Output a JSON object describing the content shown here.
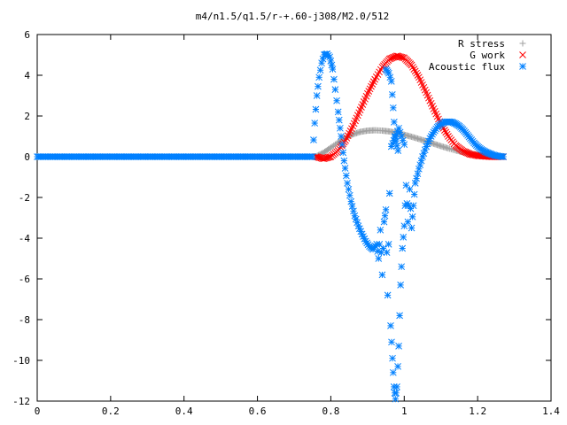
{
  "chart_data": {
    "type": "scatter",
    "title": "m4/n1.5/q1.5/r-+.60-j308/M2.0/512",
    "xlabel": "",
    "ylabel": "",
    "xlim": [
      0,
      1.4
    ],
    "ylim": [
      -12,
      6
    ],
    "xticks": [
      "0",
      "0.2",
      "0.4",
      "0.6",
      "0.8",
      "1",
      "1.2",
      "1.4"
    ],
    "yticks": [
      "6",
      "4",
      "2",
      "0",
      "-2",
      "-4",
      "-6",
      "-8",
      "-10",
      "-12"
    ],
    "grid": false,
    "legend_position": "top-right",
    "series": [
      {
        "name": "R stress",
        "marker": "+",
        "color": "#a0a0a0",
        "points": [
          [
            0.0,
            0.0
          ],
          [
            0.05,
            0.0
          ],
          [
            0.1,
            0.0
          ],
          [
            0.15,
            0.0
          ],
          [
            0.2,
            0.0
          ],
          [
            0.25,
            0.0
          ],
          [
            0.3,
            0.0
          ],
          [
            0.35,
            0.0
          ],
          [
            0.4,
            0.0
          ],
          [
            0.45,
            0.0
          ],
          [
            0.5,
            0.0
          ],
          [
            0.55,
            0.0
          ],
          [
            0.6,
            0.0
          ],
          [
            0.65,
            0.0
          ],
          [
            0.7,
            0.0
          ],
          [
            0.75,
            0.0
          ],
          [
            0.76,
            0.02
          ],
          [
            0.78,
            0.2
          ],
          [
            0.8,
            0.45
          ],
          [
            0.82,
            0.7
          ],
          [
            0.84,
            0.92
          ],
          [
            0.86,
            1.1
          ],
          [
            0.88,
            1.22
          ],
          [
            0.9,
            1.28
          ],
          [
            0.92,
            1.3
          ],
          [
            0.94,
            1.28
          ],
          [
            0.96,
            1.24
          ],
          [
            0.98,
            1.17
          ],
          [
            1.0,
            1.08
          ],
          [
            1.02,
            0.98
          ],
          [
            1.04,
            0.87
          ],
          [
            1.06,
            0.76
          ],
          [
            1.08,
            0.64
          ],
          [
            1.1,
            0.52
          ],
          [
            1.12,
            0.41
          ],
          [
            1.14,
            0.31
          ],
          [
            1.16,
            0.22
          ],
          [
            1.18,
            0.15
          ],
          [
            1.2,
            0.09
          ],
          [
            1.22,
            0.05
          ],
          [
            1.24,
            0.02
          ],
          [
            1.26,
            0.0
          ],
          [
            1.27,
            0.0
          ]
        ]
      },
      {
        "name": "G work",
        "marker": "x",
        "color": "#ff0000",
        "points": [
          [
            0.76,
            0.0
          ],
          [
            0.78,
            -0.1
          ],
          [
            0.8,
            0.0
          ],
          [
            0.82,
            0.3
          ],
          [
            0.84,
            0.8
          ],
          [
            0.86,
            1.5
          ],
          [
            0.88,
            2.3
          ],
          [
            0.9,
            3.1
          ],
          [
            0.92,
            3.8
          ],
          [
            0.94,
            4.4
          ],
          [
            0.96,
            4.8
          ],
          [
            0.98,
            4.95
          ],
          [
            1.0,
            4.85
          ],
          [
            1.02,
            4.5
          ],
          [
            1.04,
            3.9
          ],
          [
            1.06,
            3.15
          ],
          [
            1.08,
            2.35
          ],
          [
            1.1,
            1.6
          ],
          [
            1.12,
            1.0
          ],
          [
            1.14,
            0.55
          ],
          [
            1.16,
            0.28
          ],
          [
            1.18,
            0.12
          ],
          [
            1.2,
            0.05
          ],
          [
            1.22,
            0.02
          ],
          [
            1.24,
            0.0
          ],
          [
            1.26,
            0.0
          ],
          [
            1.27,
            0.0
          ]
        ]
      },
      {
        "name": "Acoustic flux",
        "marker": "*",
        "color": "#0080ff",
        "points": [
          [
            0.0,
            0.0
          ],
          [
            0.05,
            0.0
          ],
          [
            0.1,
            0.0
          ],
          [
            0.15,
            0.0
          ],
          [
            0.2,
            0.0
          ],
          [
            0.25,
            0.0
          ],
          [
            0.3,
            0.0
          ],
          [
            0.35,
            0.0
          ],
          [
            0.4,
            0.0
          ],
          [
            0.45,
            0.0
          ],
          [
            0.5,
            0.0
          ],
          [
            0.55,
            0.0
          ],
          [
            0.6,
            0.0
          ],
          [
            0.65,
            0.0
          ],
          [
            0.7,
            0.0
          ],
          [
            0.75,
            0.0
          ],
          [
            0.756,
            1.65
          ],
          [
            0.762,
            3.0
          ],
          [
            0.768,
            3.9
          ],
          [
            0.775,
            4.6
          ],
          [
            0.782,
            5.0
          ],
          [
            0.79,
            5.05
          ],
          [
            0.797,
            4.9
          ],
          [
            0.805,
            4.3
          ],
          [
            0.812,
            3.3
          ],
          [
            0.82,
            2.2
          ],
          [
            0.828,
            1.0
          ],
          [
            0.836,
            -0.2
          ],
          [
            0.845,
            -1.3
          ],
          [
            0.855,
            -2.2
          ],
          [
            0.865,
            -2.9
          ],
          [
            0.875,
            -3.4
          ],
          [
            0.885,
            -3.8
          ],
          [
            0.895,
            -4.15
          ],
          [
            0.905,
            -4.4
          ],
          [
            0.915,
            -4.55
          ],
          [
            0.925,
            -4.3
          ],
          [
            0.93,
            -5.0
          ],
          [
            0.935,
            -3.6
          ],
          [
            0.94,
            -5.8
          ],
          [
            0.945,
            -3.2
          ],
          [
            0.95,
            -2.6
          ],
          [
            0.955,
            -6.8
          ],
          [
            0.96,
            -1.8
          ],
          [
            0.963,
            -8.3
          ],
          [
            0.968,
            -9.9
          ],
          [
            0.972,
            -11.3
          ],
          [
            0.976,
            -11.9
          ],
          [
            0.98,
            -11.3
          ],
          [
            0.985,
            -9.3
          ],
          [
            0.99,
            -6.3
          ],
          [
            0.995,
            -4.5
          ],
          [
            1.0,
            -3.4
          ],
          [
            1.005,
            -1.4
          ],
          [
            1.01,
            -3.2
          ],
          [
            1.015,
            -1.6
          ],
          [
            1.02,
            -3.5
          ],
          [
            1.025,
            -2.4
          ],
          [
            1.03,
            -1.3
          ],
          [
            1.04,
            -0.6
          ],
          [
            1.05,
            0.0
          ],
          [
            1.06,
            0.5
          ],
          [
            1.07,
            0.9
          ],
          [
            1.08,
            1.2
          ],
          [
            1.09,
            1.45
          ],
          [
            1.1,
            1.6
          ],
          [
            1.11,
            1.7
          ],
          [
            1.12,
            1.72
          ],
          [
            1.13,
            1.7
          ],
          [
            1.14,
            1.62
          ],
          [
            1.15,
            1.5
          ],
          [
            1.16,
            1.33
          ],
          [
            1.17,
            1.12
          ],
          [
            1.18,
            0.9
          ],
          [
            1.19,
            0.68
          ],
          [
            1.2,
            0.5
          ],
          [
            1.21,
            0.36
          ],
          [
            1.22,
            0.25
          ],
          [
            1.23,
            0.17
          ],
          [
            1.24,
            0.1
          ],
          [
            1.25,
            0.05
          ],
          [
            1.26,
            0.02
          ],
          [
            1.27,
            0.0
          ],
          [
            0.95,
            4.3
          ],
          [
            0.958,
            4.1
          ],
          [
            0.965,
            3.7
          ],
          [
            0.97,
            2.4
          ],
          [
            0.975,
            1.0
          ],
          [
            0.983,
            0.3
          ],
          [
            0.965,
            0.5
          ],
          [
            0.985,
            1.4
          ],
          [
            1.0,
            0.6
          ]
        ]
      }
    ]
  }
}
